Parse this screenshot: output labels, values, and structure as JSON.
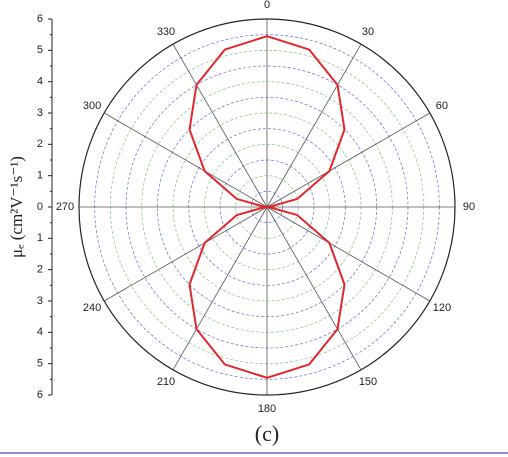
{
  "chart_data": {
    "type": "polar",
    "caption": "(c)",
    "r_label": "μₑ (cm²V⁻¹s⁻¹)",
    "theta": [
      0,
      15,
      30,
      45,
      60,
      75,
      90,
      105,
      120,
      135,
      150,
      165,
      180,
      195,
      210,
      225,
      240,
      255,
      270,
      285,
      300,
      315,
      330,
      345
    ],
    "series": [
      {
        "color": "#e3262b",
        "values": [
          5.45,
          5.2,
          4.5,
          3.5,
          2.3,
          1.0,
          0.05,
          1.0,
          2.3,
          3.5,
          4.5,
          5.2,
          5.45,
          5.2,
          4.5,
          3.5,
          2.3,
          1.0,
          0.05,
          1.0,
          2.3,
          3.5,
          4.5,
          5.2
        ]
      }
    ],
    "rlim": [
      0,
      6
    ],
    "rticks": [
      0,
      1,
      2,
      3,
      4,
      5,
      6
    ],
    "rminorticks": [
      0.5,
      1.5,
      2.5,
      3.5,
      4.5,
      5.5
    ],
    "thetaticks": [
      0,
      30,
      60,
      90,
      120,
      150,
      180,
      210,
      240,
      270,
      300,
      330
    ],
    "grid": true,
    "major_grid_color": "#7fc47f",
    "minor_grid_color": "#6b6bd8"
  }
}
